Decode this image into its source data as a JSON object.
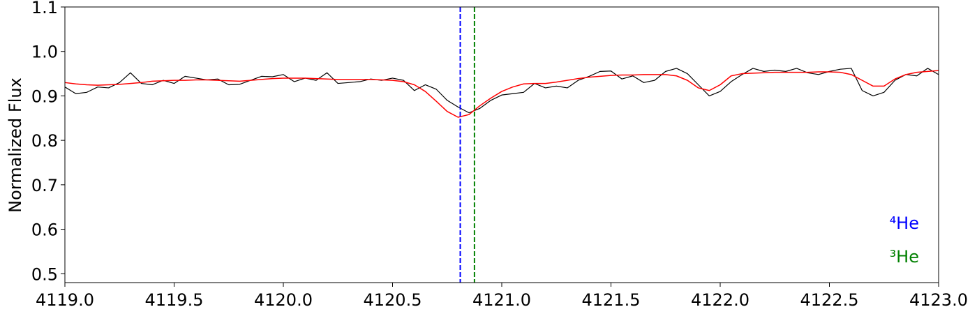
{
  "chart_data": {
    "type": "line",
    "ylabel": "Normalized Flux",
    "x": [
      4119.0,
      4119.05,
      4119.1,
      4119.15,
      4119.2,
      4119.25,
      4119.3,
      4119.35,
      4119.4,
      4119.45,
      4119.5,
      4119.55,
      4119.6,
      4119.65,
      4119.7,
      4119.75,
      4119.8,
      4119.85,
      4119.9,
      4119.95,
      4120.0,
      4120.05,
      4120.1,
      4120.15,
      4120.2,
      4120.25,
      4120.3,
      4120.35,
      4120.4,
      4120.45,
      4120.5,
      4120.55,
      4120.6,
      4120.65,
      4120.7,
      4120.75,
      4120.8,
      4120.85,
      4120.9,
      4120.95,
      4121.0,
      4121.05,
      4121.1,
      4121.15,
      4121.2,
      4121.25,
      4121.3,
      4121.35,
      4121.4,
      4121.45,
      4121.5,
      4121.55,
      4121.6,
      4121.65,
      4121.7,
      4121.75,
      4121.8,
      4121.85,
      4121.9,
      4121.95,
      4122.0,
      4122.05,
      4122.1,
      4122.15,
      4122.2,
      4122.25,
      4122.3,
      4122.35,
      4122.4,
      4122.45,
      4122.5,
      4122.55,
      4122.6,
      4122.65,
      4122.7,
      4122.75,
      4122.8,
      4122.85,
      4122.9,
      4122.95,
      4123.0
    ],
    "series": [
      {
        "color": "#000000",
        "width": 1.2,
        "values": [
          0.92,
          0.905,
          0.908,
          0.92,
          0.918,
          0.93,
          0.952,
          0.928,
          0.925,
          0.935,
          0.928,
          0.944,
          0.94,
          0.936,
          0.938,
          0.925,
          0.926,
          0.935,
          0.944,
          0.943,
          0.948,
          0.932,
          0.94,
          0.935,
          0.952,
          0.928,
          0.93,
          0.932,
          0.938,
          0.935,
          0.94,
          0.935,
          0.912,
          0.925,
          0.915,
          0.89,
          0.875,
          0.862,
          0.872,
          0.89,
          0.902,
          0.905,
          0.908,
          0.928,
          0.918,
          0.922,
          0.918,
          0.935,
          0.944,
          0.955,
          0.956,
          0.938,
          0.945,
          0.93,
          0.935,
          0.955,
          0.962,
          0.95,
          0.925,
          0.9,
          0.91,
          0.932,
          0.948,
          0.962,
          0.955,
          0.958,
          0.955,
          0.962,
          0.952,
          0.948,
          0.955,
          0.96,
          0.962,
          0.912,
          0.9,
          0.908,
          0.935,
          0.948,
          0.945,
          0.962,
          0.948
        ]
      },
      {
        "color": "#ff0000",
        "width": 1.5,
        "values": [
          0.93,
          0.927,
          0.925,
          0.924,
          0.925,
          0.926,
          0.928,
          0.93,
          0.933,
          0.934,
          0.935,
          0.935,
          0.936,
          0.936,
          0.935,
          0.934,
          0.933,
          0.935,
          0.937,
          0.939,
          0.94,
          0.94,
          0.94,
          0.939,
          0.938,
          0.937,
          0.937,
          0.937,
          0.937,
          0.936,
          0.935,
          0.932,
          0.925,
          0.91,
          0.888,
          0.865,
          0.852,
          0.858,
          0.878,
          0.895,
          0.91,
          0.92,
          0.927,
          0.928,
          0.928,
          0.931,
          0.935,
          0.939,
          0.942,
          0.944,
          0.946,
          0.947,
          0.947,
          0.948,
          0.948,
          0.948,
          0.945,
          0.935,
          0.918,
          0.912,
          0.925,
          0.945,
          0.95,
          0.951,
          0.952,
          0.953,
          0.953,
          0.953,
          0.953,
          0.954,
          0.954,
          0.953,
          0.948,
          0.935,
          0.922,
          0.922,
          0.938,
          0.948,
          0.953,
          0.955,
          0.957
        ]
      }
    ],
    "vlines": [
      {
        "x": 4120.81,
        "color": "#0000ff",
        "label": "⁴He"
      },
      {
        "x": 4120.875,
        "color": "#008000",
        "label": "³He"
      }
    ],
    "xlim": [
      4119.0,
      4123.0
    ],
    "ylim": [
      0.48,
      1.1
    ],
    "xticks": [
      {
        "value": 4119,
        "label": "4119.0"
      },
      4119.5,
      {
        "value": 4120,
        "label": "4120.0"
      },
      4120.5,
      {
        "value": 4121,
        "label": "4121.0"
      },
      4121.5,
      {
        "value": 4122,
        "label": "4122.0"
      },
      4122.5,
      {
        "value": 4123,
        "label": "4123.0"
      }
    ],
    "yticks": [
      0.5,
      0.6,
      0.7,
      0.8,
      0.9,
      {
        "value": 1,
        "label": "1.0"
      },
      1.1
    ]
  }
}
